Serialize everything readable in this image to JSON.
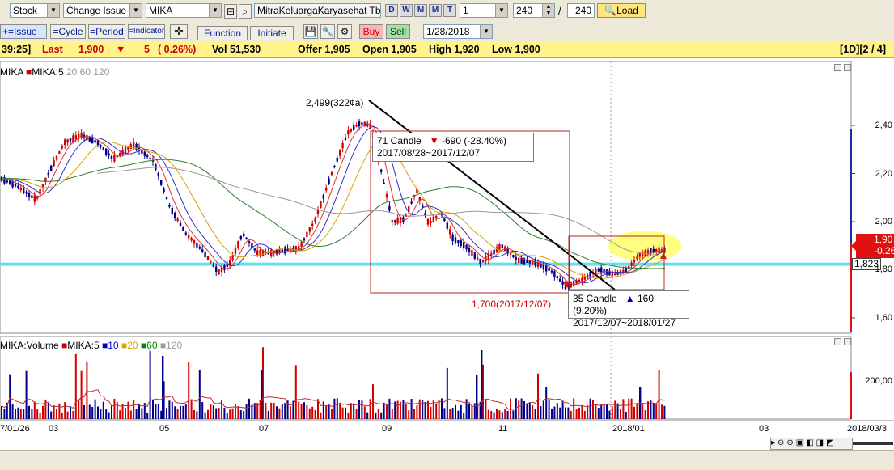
{
  "toolbar": {
    "asset_type": "Stock",
    "change_mode": "Change Issue",
    "ticker": "MIKA",
    "company": "MitraKeluargaKaryasehat Tbk",
    "periods": [
      "D",
      "W",
      "M",
      "M",
      "T"
    ],
    "period_count": "1",
    "bars_input": "240",
    "bars_total": "240",
    "load_label": "Load",
    "row2_buttons": [
      "=Issue",
      "=Cycle",
      "=Period",
      "=Indicator"
    ],
    "function_label": "Function",
    "initiate_label": "Initiate",
    "buy_label": "Buy",
    "sell_label": "Sell",
    "date": "1/28/2018"
  },
  "info": {
    "time": "39:25]",
    "last_label": "Last",
    "last_value": "1,900",
    "change": "5",
    "change_pct": "( 0.26%)",
    "vol": "Vol 51,530",
    "offer": "Offer 1,905",
    "open": "Open 1,905",
    "high": "High 1,920",
    "low": "Low 1,900",
    "page": "[1D][2 / 4]"
  },
  "legend_price": {
    "ticker": "MIKA",
    "ma": "MIKA:5",
    "ma_rest": "20  60  120"
  },
  "legend_volume": {
    "label": "MIKA:Volume",
    "ma5": "MIKA:5",
    "ma10": "10",
    "ma20": "20",
    "ma60": "60",
    "ma120": "120"
  },
  "annotations": {
    "peak": "2,499(322¢a)",
    "box1_line1": "71 Candle",
    "box1_change": "-690 (-28.40%)",
    "box1_line2": "2017/08/28~2017/12/07",
    "low": "1,700(2017/12/07)",
    "box2_line1": "35 Candle",
    "box2_change": "160 (9.20%)",
    "box2_line2": "2017/12/07~2018/01/27",
    "current_price": "1,90",
    "current_change": "-0.26%",
    "support_level": "1,823"
  },
  "yaxis": [
    "2,40",
    "2,20",
    "2,00",
    "1,80",
    "1,60"
  ],
  "volume_axis": [
    "200,00"
  ],
  "xaxis": [
    "7/01/26",
    "03",
    "05",
    "07",
    "09",
    "11",
    "2018/01",
    "03",
    "2018/03/3"
  ],
  "chart_data": {
    "type": "candlestick",
    "price_range": [
      1560,
      2530
    ],
    "support_line": 1823,
    "peak": {
      "value": 2499
    },
    "low": {
      "value": 1700,
      "date": "2017/12/07"
    },
    "last": 1900,
    "colors": {
      "up": "#d40000",
      "down": "#00008b",
      "support": "#66e0f0",
      "highlight": "#ffff66"
    }
  }
}
